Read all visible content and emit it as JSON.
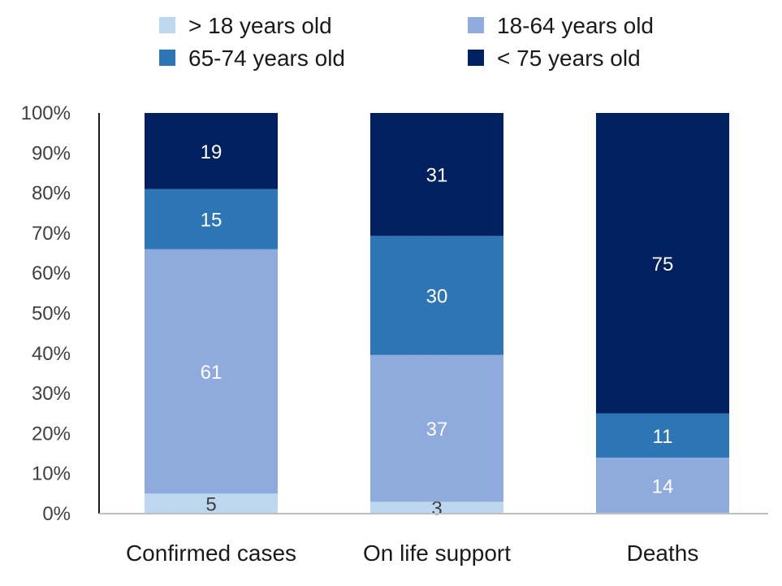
{
  "chart_data": {
    "type": "bar",
    "stacked": true,
    "normalized": true,
    "categories": [
      "Confirmed cases",
      "On life support",
      "Deaths"
    ],
    "series": [
      {
        "name": "> 18 years old",
        "color": "#bdd7ee",
        "label_color": "#404040",
        "values": [
          5,
          3,
          0
        ]
      },
      {
        "name": "18-64 years old",
        "color": "#8faadc",
        "label_color": "#ffffff",
        "values": [
          61,
          37,
          14
        ]
      },
      {
        "name": "65-74 years old",
        "color": "#2e75b6",
        "label_color": "#ffffff",
        "values": [
          15,
          30,
          11
        ]
      },
      {
        "name": "< 75 years old",
        "color": "#002060",
        "label_color": "#ffffff",
        "values": [
          19,
          31,
          75
        ]
      }
    ],
    "ylim": [
      0,
      100
    ],
    "yticks": [
      "0%",
      "10%",
      "20%",
      "30%",
      "40%",
      "50%",
      "60%",
      "70%",
      "80%",
      "90%",
      "100%"
    ],
    "title": "",
    "xlabel": "",
    "ylabel": "",
    "legend_position": "top",
    "grid": false
  }
}
